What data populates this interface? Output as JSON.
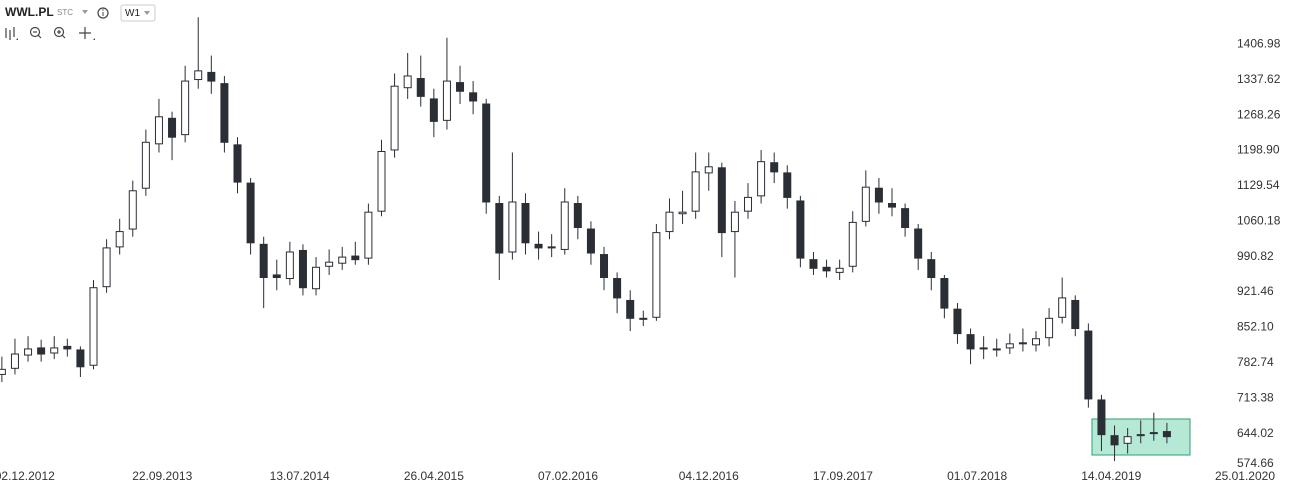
{
  "header": {
    "symbol": "WWL.PL",
    "market": "STC",
    "interval": "W1"
  },
  "chart_data": {
    "type": "candlestick",
    "color": "#2a2e35",
    "up_color": "#ffffff",
    "x": [
      "2012-10-14",
      "2012-11-11",
      "2012-12-09",
      "2013-01-06",
      "2013-02-03",
      "2013-03-03",
      "2013-03-31",
      "2013-04-28",
      "2013-05-26",
      "2013-06-23",
      "2013-07-21",
      "2013-08-18",
      "2013-09-15",
      "2013-10-13",
      "2013-11-10",
      "2013-12-08",
      "2014-01-05",
      "2014-02-02",
      "2014-03-02",
      "2014-03-30",
      "2014-04-27",
      "2014-05-25",
      "2014-06-22",
      "2014-07-20",
      "2014-08-17",
      "2014-09-14",
      "2014-10-12",
      "2014-11-09",
      "2014-12-07",
      "2015-01-04",
      "2015-02-01",
      "2015-03-01",
      "2015-03-29",
      "2015-04-26",
      "2015-05-24",
      "2015-06-21",
      "2015-07-19",
      "2015-08-16",
      "2015-09-13",
      "2015-10-11",
      "2015-11-08",
      "2015-12-06",
      "2016-01-03",
      "2016-01-31",
      "2016-02-28",
      "2016-03-27",
      "2016-04-24",
      "2016-05-22",
      "2016-06-19",
      "2016-07-17",
      "2016-08-14",
      "2016-09-11",
      "2016-10-09",
      "2016-11-06",
      "2016-12-04",
      "2017-01-01",
      "2017-01-29",
      "2017-02-26",
      "2017-03-26",
      "2017-04-23",
      "2017-05-21",
      "2017-06-18",
      "2017-07-16",
      "2017-08-13",
      "2017-09-10",
      "2017-10-08",
      "2017-11-05",
      "2017-12-03",
      "2017-12-31",
      "2018-01-28",
      "2018-02-25",
      "2018-03-25",
      "2018-04-22",
      "2018-05-20",
      "2018-06-17",
      "2018-07-15",
      "2018-08-12",
      "2018-09-09",
      "2018-10-07",
      "2018-11-04",
      "2018-12-02",
      "2018-12-30",
      "2019-01-27",
      "2019-02-24",
      "2019-03-24",
      "2019-04-21",
      "2019-05-19",
      "2019-06-16",
      "2019-07-14",
      "2019-08-11"
    ],
    "open": [
      760,
      772,
      798,
      812,
      802,
      815,
      808,
      778,
      932,
      1010,
      1045,
      1125,
      1212,
      1262,
      1230,
      1338,
      1352,
      1330,
      1210,
      1135,
      1015,
      955,
      948,
      1003,
      928,
      972,
      978,
      992,
      988,
      1080,
      1200,
      1322,
      1340,
      1300,
      1258,
      1332,
      1312,
      1290,
      1095,
      1000,
      1095,
      1015,
      1010,
      1005,
      1095,
      1045,
      995,
      948,
      905,
      868,
      872,
      1040,
      1075,
      1080,
      1155,
      1165,
      1040,
      1080,
      1110,
      1175,
      1155,
      1100,
      985,
      970,
      960,
      972,
      1060,
      1125,
      1095,
      1085,
      1045,
      985,
      948,
      888,
      838,
      812,
      808,
      812,
      822,
      818,
      832,
      872,
      905,
      845,
      710,
      640,
      625,
      640,
      645,
      648
    ],
    "high": [
      795,
      830,
      835,
      828,
      835,
      830,
      815,
      945,
      1025,
      1065,
      1140,
      1240,
      1300,
      1275,
      1365,
      1460,
      1385,
      1345,
      1225,
      1145,
      1030,
      985,
      1020,
      1015,
      990,
      1005,
      1010,
      1020,
      1095,
      1220,
      1350,
      1390,
      1385,
      1320,
      1420,
      1365,
      1335,
      1300,
      1110,
      1195,
      1115,
      1040,
      1035,
      1125,
      1110,
      1060,
      1010,
      960,
      925,
      885,
      1055,
      1105,
      1120,
      1195,
      1195,
      1175,
      1100,
      1135,
      1200,
      1195,
      1170,
      1110,
      1000,
      985,
      985,
      1080,
      1160,
      1145,
      1125,
      1095,
      1055,
      1000,
      955,
      900,
      850,
      835,
      830,
      840,
      850,
      845,
      890,
      950,
      915,
      860,
      720,
      660,
      655,
      670,
      685,
      665
    ],
    "low": [
      745,
      760,
      785,
      785,
      790,
      795,
      755,
      770,
      920,
      995,
      1030,
      1110,
      1195,
      1180,
      1215,
      1320,
      1310,
      1195,
      1115,
      995,
      890,
      925,
      935,
      915,
      915,
      955,
      965,
      975,
      975,
      1070,
      1185,
      1300,
      1285,
      1225,
      1240,
      1290,
      1270,
      1075,
      945,
      985,
      995,
      985,
      990,
      995,
      1025,
      975,
      925,
      880,
      845,
      855,
      865,
      1025,
      1055,
      1065,
      1120,
      990,
      950,
      1065,
      1095,
      1135,
      1085,
      970,
      955,
      950,
      945,
      960,
      1050,
      1075,
      1070,
      1030,
      965,
      925,
      870,
      820,
      780,
      790,
      795,
      800,
      805,
      805,
      815,
      860,
      835,
      695,
      610,
      590,
      605,
      625,
      630,
      625
    ],
    "close": [
      770,
      800,
      810,
      800,
      812,
      810,
      775,
      930,
      1008,
      1040,
      1120,
      1215,
      1265,
      1225,
      1335,
      1355,
      1335,
      1215,
      1137,
      1018,
      950,
      950,
      1000,
      930,
      970,
      980,
      990,
      985,
      1078,
      1197,
      1325,
      1345,
      1305,
      1256,
      1335,
      1315,
      1296,
      1098,
      998,
      1098,
      1018,
      1008,
      1008,
      1098,
      1048,
      998,
      950,
      910,
      870,
      870,
      1038,
      1078,
      1078,
      1157,
      1167,
      1038,
      1078,
      1107,
      1177,
      1157,
      1107,
      988,
      968,
      963,
      968,
      1058,
      1127,
      1098,
      1088,
      1048,
      988,
      950,
      890,
      840,
      810,
      810,
      810,
      820,
      820,
      830,
      870,
      910,
      850,
      712,
      642,
      622,
      638,
      642,
      646,
      638
    ],
    "xlim": [
      "2012-10-10",
      "2020-05-11"
    ],
    "xticks": [
      {
        "value": "2012-12-02",
        "label": "02.12.2012"
      },
      {
        "value": "2013-09-22",
        "label": "22.09.2013"
      },
      {
        "value": "2014-07-13",
        "label": "13.07.2014"
      },
      {
        "value": "2015-04-26",
        "label": "26.04.2015"
      },
      {
        "value": "2016-02-07",
        "label": "07.02.2016"
      },
      {
        "value": "2016-12-04",
        "label": "04.12.2016"
      },
      {
        "value": "2017-09-17",
        "label": "17.09.2017"
      },
      {
        "value": "2018-07-01",
        "label": "01.07.2018"
      },
      {
        "value": "2019-04-14",
        "label": "14.04.2019"
      },
      {
        "value": "2020-01-25",
        "label": "25.01.2020"
      }
    ],
    "ylim": [
      574.66,
      1493.9
    ],
    "yticks": [
      574.66,
      644.02,
      713.38,
      782.74,
      {
        "value": 852.1,
        "label": "852.10"
      },
      921.46,
      990.82,
      1060.18,
      1129.54,
      {
        "value": 1198.9,
        "label": "1198.90"
      },
      1268.26,
      1337.62,
      1406.98
    ]
  }
}
